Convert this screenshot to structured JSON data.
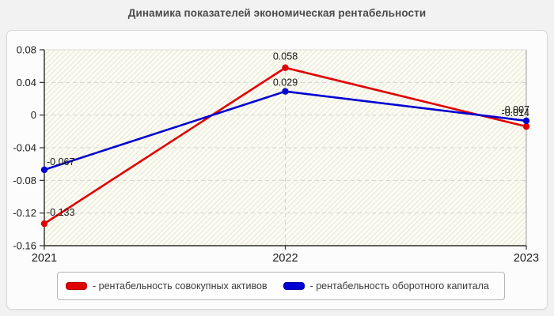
{
  "page": {
    "background": "#f2f2f2",
    "panel_background": "#fcfcfc"
  },
  "chart_data": {
    "type": "line",
    "title": "Динамика показателей экономическая рентабельности",
    "categories": [
      "2021",
      "2022",
      "2023"
    ],
    "xlabel": "",
    "ylabel": "",
    "ylim": [
      -0.16,
      0.08
    ],
    "yticks": [
      0.08,
      0.04,
      0,
      -0.04,
      -0.08,
      -0.12,
      -0.16
    ],
    "ytick_labels": [
      "0.08",
      "0.04",
      "0",
      "-0.04",
      "-0.08",
      "-0.12",
      "-0.16"
    ],
    "grid": "horizontal dashed lines at y ticks, vertical dashed line at 2022, hatched plot background",
    "legend_position": "bottom box",
    "series": [
      {
        "name": "рентабельность совокупных активов",
        "legend_label": "- рентабельность совокупных активов",
        "color": "#e10000",
        "values": [
          -0.133,
          0.058,
          -0.014
        ],
        "point_labels": [
          "-0.133",
          "0.058",
          "-0.014"
        ]
      },
      {
        "name": "рентабельность оборотного капитала",
        "legend_label": "- рентабельность оборотного капитала",
        "color": "#0000d2",
        "values": [
          -0.067,
          0.029,
          -0.007
        ],
        "point_labels": [
          "-0.067",
          "0.029",
          "-0.007"
        ]
      }
    ]
  }
}
